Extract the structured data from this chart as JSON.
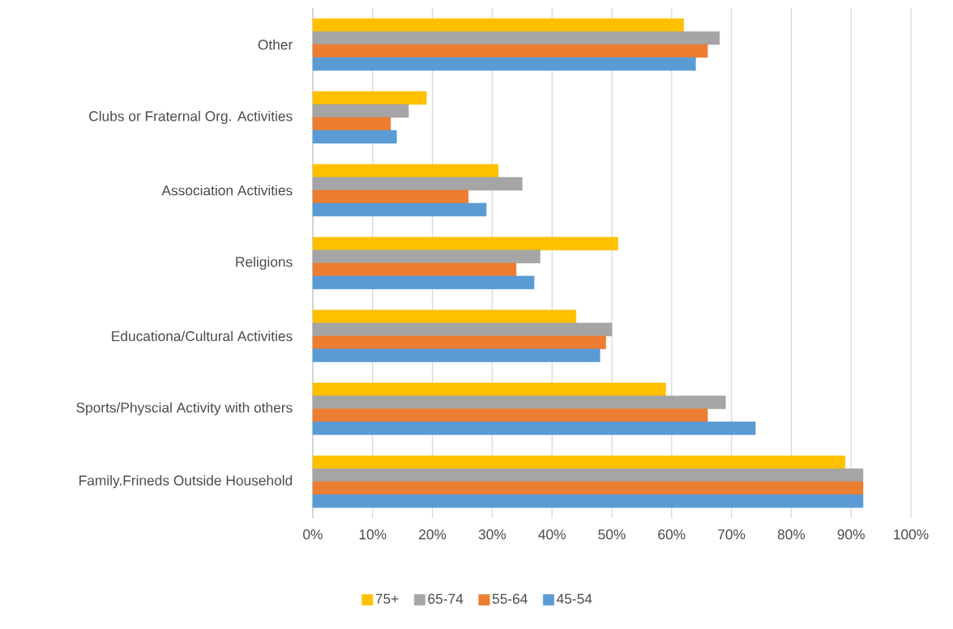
{
  "chart_data": {
    "type": "bar",
    "orientation": "horizontal",
    "categories": [
      "Other",
      "Clubs or Fraternal Org. Activities",
      "Association Activities",
      "Religions",
      "Educationa/Cultural Activities",
      "Sports/Physcial Activity with others",
      "Family.Frineds Outside Household"
    ],
    "series": [
      {
        "name": "75+",
        "color": "#ffc000",
        "values": [
          62,
          19,
          31,
          51,
          44,
          59,
          89
        ]
      },
      {
        "name": "65-74",
        "color": "#a5a5a5",
        "values": [
          68,
          16,
          35,
          38,
          50,
          69,
          92
        ]
      },
      {
        "name": "55-64",
        "color": "#ed7d31",
        "values": [
          66,
          13,
          26,
          34,
          49,
          66,
          92
        ]
      },
      {
        "name": "45-54",
        "color": "#5b9bd5",
        "values": [
          64,
          14,
          29,
          37,
          48,
          74,
          92
        ]
      }
    ],
    "xlim": [
      0,
      100
    ],
    "xticks": [
      {
        "value": 0,
        "label": "0%"
      },
      {
        "value": 10,
        "label": "10%"
      },
      {
        "value": 20,
        "label": "20%"
      },
      {
        "value": 30,
        "label": "30%"
      },
      {
        "value": 40,
        "label": "40%"
      },
      {
        "value": 50,
        "label": "50%"
      },
      {
        "value": 60,
        "label": "60%"
      },
      {
        "value": 70,
        "label": "70%"
      },
      {
        "value": 80,
        "label": "80%"
      },
      {
        "value": 90,
        "label": "90%"
      },
      {
        "value": 100,
        "label": "100%"
      }
    ],
    "grid": "x",
    "legend": "bottom"
  }
}
